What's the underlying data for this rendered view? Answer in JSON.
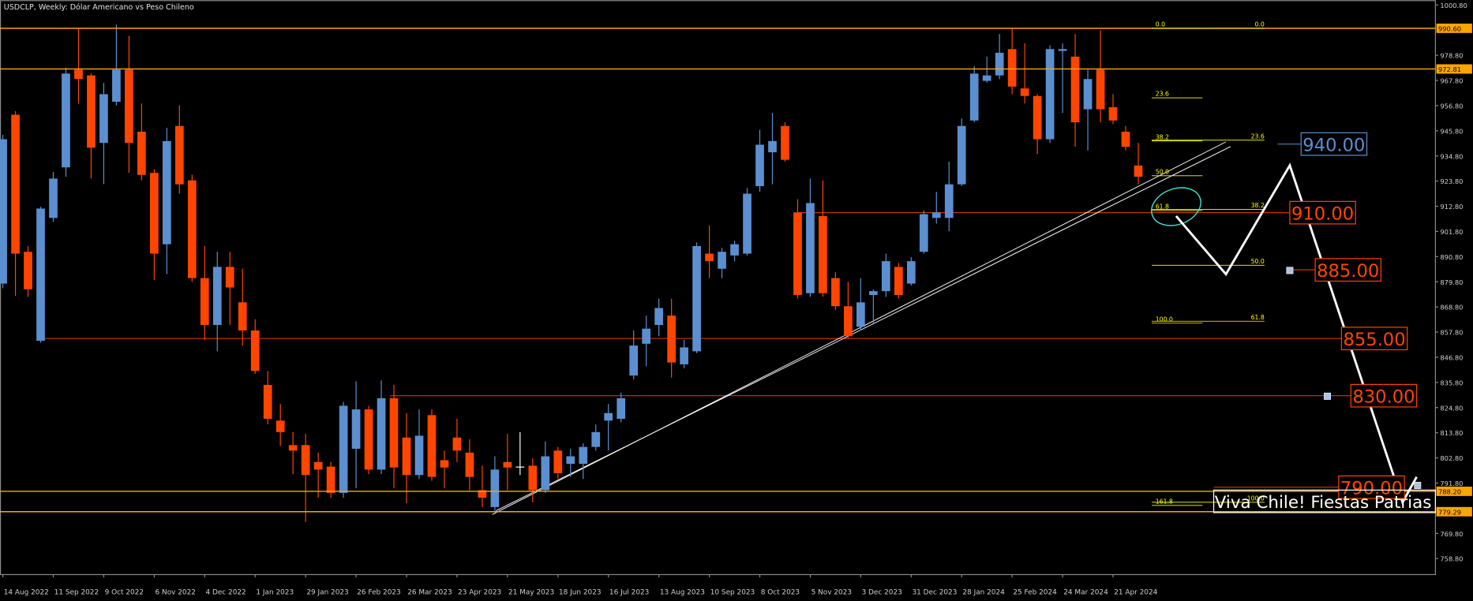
{
  "chart_data": {
    "type": "candlestick",
    "title": "USDCLP, Weekly:  Dólar Americano vs Peso Chileno",
    "up_color": "#5b8fd0",
    "down_color": "#ff4500",
    "doji_color": "#ffffff",
    "categories": [
      "14 Aug 2022",
      null,
      null,
      null,
      "11 Sep 2022",
      null,
      null,
      null,
      "9 Oct 2022",
      null,
      null,
      null,
      "6 Nov 2022",
      null,
      null,
      null,
      "4 Dec 2022",
      null,
      null,
      null,
      "1 Jan 2023",
      null,
      null,
      null,
      "29 Jan 2023",
      null,
      null,
      null,
      "26 Feb 2023",
      null,
      null,
      null,
      "26 Mar 2023",
      null,
      null,
      null,
      "23 Apr 2023",
      null,
      null,
      null,
      "21 May 2023",
      null,
      null,
      null,
      "18 Jun 2023",
      null,
      null,
      null,
      "16 Jul 2023",
      null,
      null,
      null,
      "13 Aug 2023",
      null,
      null,
      null,
      "10 Sep 2023",
      null,
      null,
      null,
      "8 Oct 2023",
      null,
      null,
      null,
      "5 Nov 2023",
      null,
      null,
      null,
      "3 Dec 2023",
      null,
      null,
      null,
      "31 Dec 2023",
      null,
      null,
      null,
      "28 Jan 2024",
      null,
      null,
      null,
      "25 Feb 2024",
      null,
      null,
      null,
      "24 Mar 2024",
      null,
      null,
      null,
      "21 Apr 2024",
      null,
      null
    ],
    "open": [
      879.0,
      952.8,
      892.9,
      854.0,
      907.7,
      929.8,
      972.5,
      970.0,
      940.5,
      958.5,
      972.5,
      945.4,
      927.4,
      896.2,
      947.9,
      924.1,
      881.4,
      860.9,
      886.3,
      870.8,
      858.5,
      834.7,
      819.1,
      808.4,
      808.4,
      801.0,
      799.0,
      787.5,
      806.8,
      824.0,
      797.7,
      828.9,
      811.7,
      795.3,
      821.5,
      801.8,
      811.7,
      805.1,
      788.7,
      781.3,
      801.0,
      799.0,
      799.4,
      788.7,
      806.0,
      800.2,
      800.2,
      807.6,
      819.1,
      819.9,
      838.8,
      852.7,
      860.9,
      865.0,
      843.7,
      849.4,
      892.1,
      885.5,
      891.3,
      892.1,
      921.6,
      936.4,
      947.9,
      910.1,
      874.8,
      908.5,
      881.4,
      869.1,
      860.1,
      874.0,
      875.7,
      886.3,
      879.0,
      892.9,
      907.7,
      907.7,
      922.4,
      950.3,
      967.6,
      970.0,
      981.5,
      964.3,
      961.0,
      942.1,
      980.7,
      978.2,
      955.2,
      972.5,
      956.1,
      945.4,
      930.6
    ],
    "high": [
      944.0,
      954.4,
      895.4,
      912.6,
      927.8,
      973.3,
      990.5,
      970.8,
      966.7,
      992.2,
      987.3,
      957.7,
      929.0,
      947.1,
      956.9,
      926.6,
      895.4,
      892.9,
      892.9,
      885.5,
      863.4,
      840.8,
      826.4,
      814.1,
      813.3,
      805.1,
      801.0,
      827.3,
      836.3,
      825.6,
      836.7,
      834.7,
      822.4,
      824.0,
      824.0,
      806.0,
      819.9,
      810.9,
      799.4,
      803.5,
      813.3,
      814.1,
      802.6,
      810.0,
      807.6,
      806.8,
      809.2,
      817.4,
      826.4,
      831.4,
      858.5,
      865.0,
      872.4,
      872.4,
      854.4,
      897.0,
      904.4,
      894.6,
      897.8,
      920.8,
      946.2,
      953.6,
      949.5,
      915.9,
      924.9,
      924.1,
      883.9,
      879.8,
      881.4,
      876.5,
      892.1,
      888.0,
      890.5,
      911.0,
      919.1,
      932.3,
      951.2,
      974.1,
      978.2,
      988.1,
      990.5,
      984.0,
      961.8,
      983.2,
      984.0,
      988.1,
      972.5,
      989.7,
      961.8,
      947.9,
      940.5
    ],
    "low": [
      877.0,
      873.6,
      873.2,
      853.1,
      906.0,
      925.7,
      957.7,
      924.9,
      922.5,
      956.9,
      927.4,
      924.1,
      880.6,
      883.1,
      918.3,
      879.8,
      854.3,
      849.4,
      860.9,
      851.9,
      839.6,
      817.5,
      808.0,
      795.7,
      774.8,
      785.4,
      785.4,
      785.4,
      789.5,
      795.7,
      795.7,
      789.5,
      783.0,
      793.6,
      792.8,
      789.5,
      801.0,
      788.7,
      781.3,
      779.7,
      788.7,
      795.3,
      783.4,
      787.5,
      793.6,
      794.5,
      793.6,
      806.0,
      806.0,
      818.3,
      837.1,
      842.9,
      856.0,
      837.9,
      842.0,
      848.6,
      881.4,
      881.4,
      888.8,
      891.3,
      919.1,
      922.4,
      932.3,
      872.4,
      873.2,
      873.2,
      867.5,
      855.2,
      858.5,
      861.7,
      873.2,
      872.4,
      878.1,
      892.1,
      905.2,
      901.9,
      921.6,
      949.5,
      966.8,
      968.4,
      961.8,
      957.7,
      935.6,
      940.5,
      953.6,
      938.8,
      937.2,
      949.5,
      948.7,
      937.2,
      922.4
    ],
    "close": [
      942.1,
      892.1,
      876.5,
      911.8,
      924.9,
      970.8,
      968.4,
      938.4,
      961.8,
      972.5,
      940.5,
      926.5,
      892.1,
      941.3,
      922.4,
      881.4,
      860.9,
      886.3,
      877.3,
      858.5,
      840.8,
      819.9,
      814.1,
      806.0,
      795.3,
      797.7,
      787.5,
      825.6,
      824.0,
      797.7,
      828.9,
      798.6,
      795.3,
      812.5,
      794.5,
      798.6,
      806.0,
      794.5,
      785.4,
      797.7,
      798.6,
      799.0,
      788.7,
      803.5,
      796.1,
      803.5,
      807.6,
      814.1,
      822.4,
      828.9,
      851.9,
      859.3,
      868.3,
      844.5,
      851.1,
      895.4,
      888.8,
      892.9,
      896.2,
      918.3,
      939.7,
      941.3,
      933.1,
      874.0,
      914.2,
      874.8,
      869.1,
      856.0,
      870.8,
      875.7,
      888.8,
      874.0,
      888.8,
      909.3,
      910.1,
      922.4,
      947.9,
      970.8,
      970.0,
      979.9,
      965.1,
      961.0,
      942.1,
      981.5,
      981.5,
      949.5,
      968.4,
      955.2,
      950.3,
      938.8,
      925.7
    ],
    "ylim": [
      751.8,
      1002.9
    ],
    "yticks": [
      {
        "value": 1000.8,
        "label": "1000.80"
      },
      {
        "value": 978.8,
        "label": "978.80"
      },
      {
        "value": 967.8,
        "label": "967.80"
      },
      {
        "value": 956.8,
        "label": "956.80"
      },
      {
        "value": 945.8,
        "label": "945.80"
      },
      {
        "value": 934.8,
        "label": "934.80"
      },
      {
        "value": 923.8,
        "label": "923.80"
      },
      {
        "value": 912.8,
        "label": "912.80"
      },
      {
        "value": 901.8,
        "label": "901.80"
      },
      {
        "value": 890.8,
        "label": "890.80"
      },
      {
        "value": 879.8,
        "label": "879.80"
      },
      {
        "value": 868.8,
        "label": "868.80"
      },
      {
        "value": 857.8,
        "label": "857.80"
      },
      {
        "value": 846.8,
        "label": "846.80"
      },
      {
        "value": 835.8,
        "label": "835.80"
      },
      {
        "value": 824.8,
        "label": "824.80"
      },
      {
        "value": 813.8,
        "label": "813.80"
      },
      {
        "value": 802.8,
        "label": "802.80"
      },
      {
        "value": 791.8,
        "label": "791.80"
      },
      {
        "value": 769.8,
        "label": "769.80"
      },
      {
        "value": 758.8,
        "label": "758.80"
      }
    ],
    "grid": false,
    "price_lines": [
      {
        "value": 990.6,
        "label": "990.60"
      },
      {
        "value": 972.81,
        "label": "972.81"
      },
      {
        "value": 788.2,
        "label": "788.20"
      },
      {
        "value": 779.29,
        "label": "779.29"
      }
    ],
    "price_line_color": "#ffa500",
    "fibonacci": [
      {
        "price_0": 990.6,
        "price_100": 861.7,
        "color": "#ffff00",
        "levels": [
          {
            "value": 0,
            "label": "0.0"
          },
          {
            "value": 23.6,
            "label": "23.6"
          },
          {
            "value": 38.2,
            "label": "38.2"
          },
          {
            "value": 50,
            "label": "50.0"
          },
          {
            "value": 61.8,
            "label": "61.8"
          },
          {
            "value": 100,
            "label": "100.0"
          },
          {
            "value": 161.8,
            "label": "161.8"
          }
        ]
      },
      {
        "price_0": 990.6,
        "price_100": 783.4,
        "color": "#ffff00",
        "levels": [
          {
            "value": 0,
            "label": "0.0"
          },
          {
            "value": 23.6,
            "label": "23.6"
          },
          {
            "value": 38.2,
            "label": "38.2"
          },
          {
            "value": 50,
            "label": "50.0"
          },
          {
            "value": 61.8,
            "label": "61.8"
          },
          {
            "value": 100,
            "label": "100.0"
          }
        ]
      }
    ],
    "annotations": [
      {
        "label": "940.00",
        "value": 940,
        "color": "#5b8fd0"
      },
      {
        "label": "910.00",
        "value": 910,
        "color": "#ff4500"
      },
      {
        "label": "885.00",
        "value": 885,
        "color": "#ff4500"
      },
      {
        "label": "855.00",
        "value": 855,
        "color": "#ff4500"
      },
      {
        "label": "830.00",
        "value": 830,
        "color": "#ff4500"
      },
      {
        "label": "790.00",
        "value": 790,
        "color": "#ff4500"
      }
    ],
    "note_text": "Viva Chile! Fiestas Patrias"
  }
}
